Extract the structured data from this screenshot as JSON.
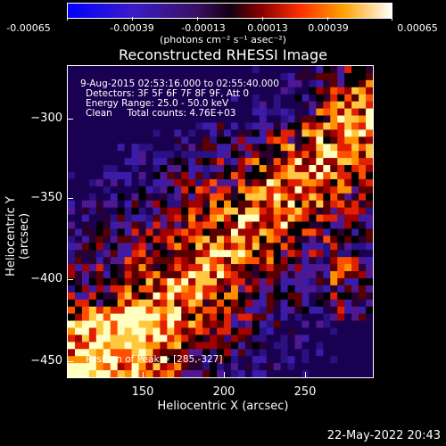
{
  "colorbar": {
    "ticks": [
      "-0.00065",
      "-0.00039",
      "-0.00013",
      "0.00013",
      "0.00039",
      "0.00065"
    ],
    "units": "(photons cm⁻² s⁻¹ asec⁻²)"
  },
  "title": "Reconstructed RHESSI Image",
  "info": {
    "line1": "9-Aug-2015 02:53:16.000 to 02:55:40.000",
    "line2": "Detectors: 3F 5F 6F 7F 8F 9F, Att 0",
    "line3": "Energy Range: 25.0 - 50.0 keV",
    "line4": "Clean     Total counts: 4.76E+03",
    "peak": "Position of Peak = [285,-327]"
  },
  "axes": {
    "xlabel": "Heliocentric X (arcsec)",
    "ylabel": "Heliocentric Y (arcsec)",
    "xticks": [
      "150",
      "200",
      "250"
    ],
    "yticks": [
      "−300",
      "−350",
      "−400",
      "−450"
    ]
  },
  "timestamp": "22-May-2022 20:43"
}
